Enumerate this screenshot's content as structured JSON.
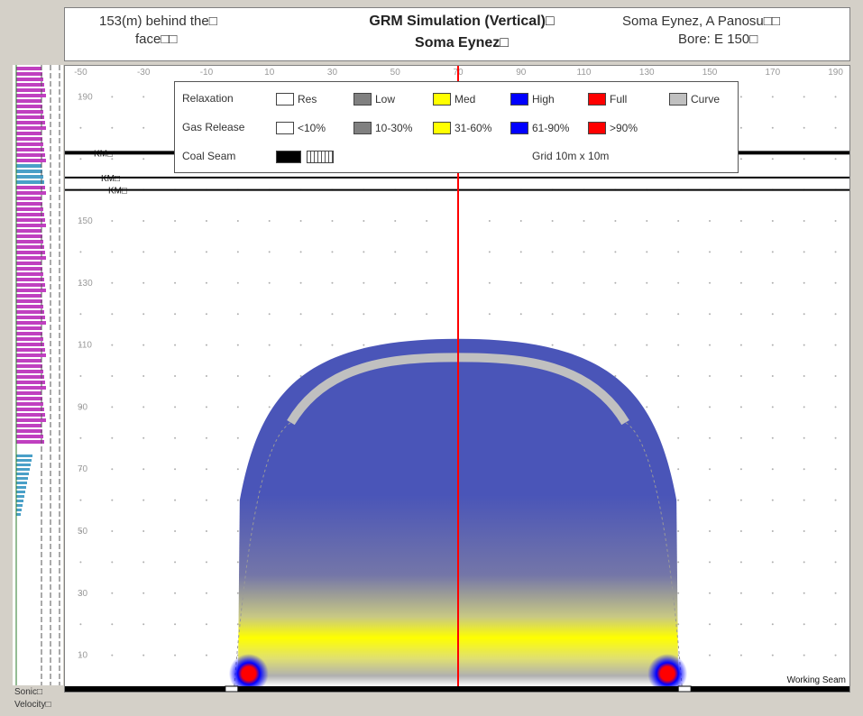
{
  "header": {
    "left_line1": "153(m) behind the□",
    "left_line2": "face□□",
    "title": "GRM Simulation (Vertical)□",
    "subtitle": "Soma Eynez□",
    "right_line1": "Soma Eynez, A Panosu□□",
    "right_line2": "Bore: E 150□"
  },
  "legend": {
    "rows": [
      {
        "label": "Relaxation",
        "items": [
          {
            "name": "Res",
            "color": "#ffffff"
          },
          {
            "name": "Low",
            "color": "#808080"
          },
          {
            "name": "Med",
            "color": "#ffff00"
          },
          {
            "name": "High",
            "color": "#0000ff"
          },
          {
            "name": "Full",
            "color": "#ff0000"
          },
          {
            "name": "Curve",
            "color": "#c0c0c0"
          }
        ]
      },
      {
        "label": "Gas Release",
        "items": [
          {
            "name": "<10%",
            "color": "#ffffff"
          },
          {
            "name": "10-30%",
            "color": "#808080"
          },
          {
            "name": "31-60%",
            "color": "#ffff00"
          },
          {
            "name": "61-90%",
            "color": "#0000ff"
          },
          {
            "name": ">90%",
            "color": "#ff0000"
          }
        ]
      },
      {
        "label": "Coal Seam",
        "items": []
      }
    ],
    "grid_note": "Grid 10m x 10m"
  },
  "left_labels": {
    "sonic": "Sonic□",
    "velocity": "Velocity□"
  },
  "chart_data": {
    "type": "heatmap",
    "x_ticks": [
      -50,
      -30,
      -10,
      10,
      30,
      50,
      70,
      90,
      110,
      130,
      150,
      170,
      190
    ],
    "y_ticks": [
      10,
      30,
      50,
      70,
      90,
      110,
      130,
      150,
      190
    ],
    "xlim": [
      -55,
      195
    ],
    "ylim": [
      0,
      200
    ],
    "grid": true,
    "center_line_x": 70,
    "coal_seams": [
      {
        "y": 172,
        "label": "KM□"
      },
      {
        "y": 164,
        "label": "KM□"
      },
      {
        "y": 160,
        "label": "KM□"
      }
    ],
    "working_seam": {
      "y": 0,
      "label": "Working Seam"
    },
    "relaxed_zone": {
      "x_min": 0,
      "x_max": 140,
      "top_y": 112
    },
    "colors": {
      "res": "#ffffff",
      "low": "#808080",
      "med": "#ffff00",
      "high": "#0000ff",
      "full": "#ff0000",
      "curve": "#c0c0c0",
      "zone_blue": "#4a55b8",
      "center_line": "#ff0000"
    }
  }
}
